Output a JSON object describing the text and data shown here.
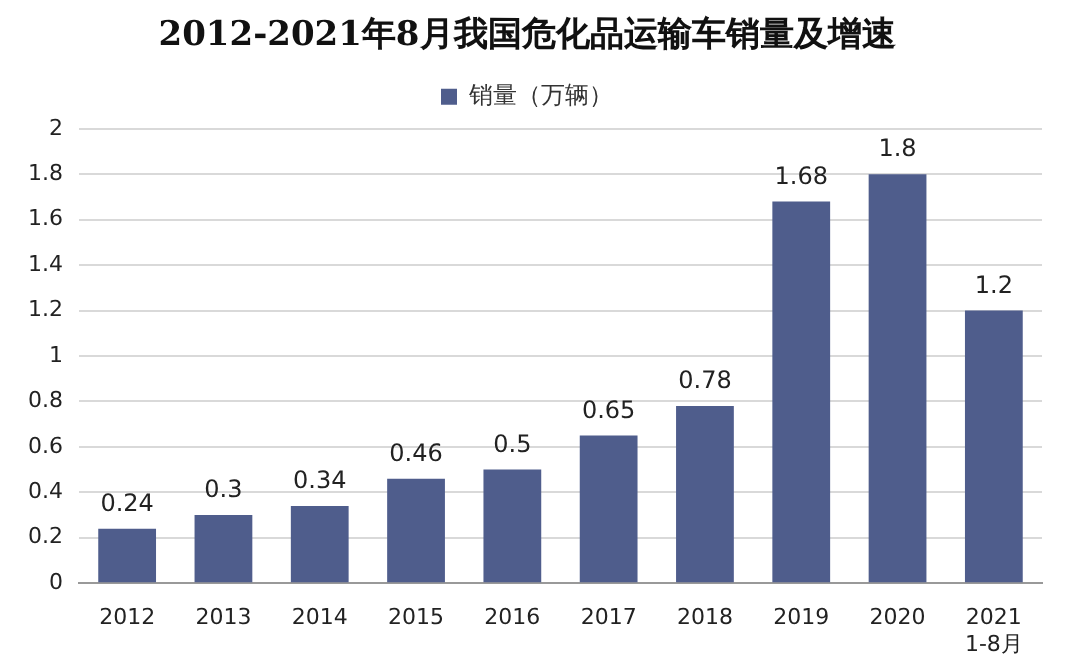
{
  "chart_data": {
    "type": "bar",
    "title": "2012-2021年8月我国危化品运输车销量及增速",
    "categories": [
      "2012",
      "2013",
      "2014",
      "2015",
      "2016",
      "2017",
      "2018",
      "2019",
      "2020",
      "2021\n1-8月"
    ],
    "series": [
      {
        "name": "销量（万辆）",
        "color": "#4f5d8c",
        "values": [
          0.24,
          0.3,
          0.34,
          0.46,
          0.5,
          0.65,
          0.78,
          1.68,
          1.8,
          1.2
        ]
      }
    ],
    "ylim": [
      0,
      2
    ],
    "yticks": [
      0,
      0.2,
      0.4,
      0.6,
      0.8,
      1,
      1.2,
      1.4,
      1.6,
      1.8,
      2
    ],
    "grid": "y",
    "legend": "top",
    "data_labels": true
  }
}
